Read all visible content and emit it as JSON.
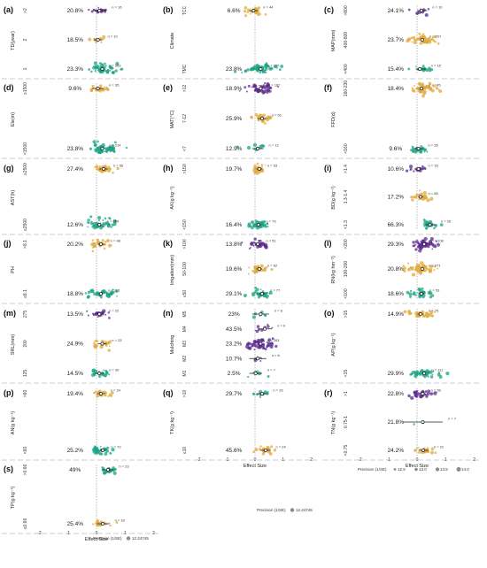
{
  "colors": {
    "purple": "#5b2a8e",
    "orange": "#e0a83a",
    "green": "#1ba383",
    "dash": "#8c8c8c",
    "ci": "#222222"
  },
  "x_axis": {
    "ticks": [
      -2,
      -1,
      0,
      1,
      2
    ],
    "label": "Effect Size",
    "xlim": [
      -2.2,
      2.2
    ]
  },
  "legend_precision": {
    "title": "Precision (1/SE)",
    "values": [
      "12.5",
      "13.0",
      "13.5",
      "14.0"
    ]
  },
  "legend_single": {
    "title": "Precision (1/SE)",
    "value": "12.24745"
  },
  "chart_data": [
    {
      "label": "(a)",
      "type": "scatter",
      "ylabel": "TD(year)",
      "groups": [
        {
          "cat": ">2",
          "pct": "20.8%",
          "n": "n = 16",
          "mean": 0.1,
          "ci": [
            -0.1,
            0.35
          ],
          "color": "purple",
          "count": 16
        },
        {
          "cat": "2",
          "pct": "18.5%",
          "n": "n = 10",
          "mean": 0.05,
          "ci": [
            -0.1,
            0.2
          ],
          "color": "orange",
          "count": 10
        },
        {
          "cat": "1",
          "pct": "23.3%",
          "n": "n = 263",
          "mean": 0.2,
          "ci": [
            0.15,
            0.25
          ],
          "color": "green",
          "count": 60
        }
      ]
    },
    {
      "label": "(b)",
      "type": "scatter",
      "ylabel": "Climate",
      "groups": [
        {
          "cat": "TCC",
          "pct": "6.6%",
          "n": "n = 44",
          "mean": -0.05,
          "ci": [
            -0.2,
            0.1
          ],
          "color": "orange",
          "count": 25
        },
        {
          "cat": "TMC",
          "pct": "23.8%",
          "n": "n = 250",
          "mean": 0.2,
          "ci": [
            0.15,
            0.25
          ],
          "color": "green",
          "count": 60
        }
      ]
    },
    {
      "label": "(c)",
      "type": "scatter",
      "ylabel": "MAP(mm)",
      "groups": [
        {
          "cat": ">800",
          "pct": "24.1%",
          "n": "n = 10",
          "mean": 0.15,
          "ci": [
            0.0,
            0.35
          ],
          "color": "purple",
          "count": 10
        },
        {
          "cat": "400-800",
          "pct": "23.7%",
          "n": "n = 207",
          "mean": 0.18,
          "ci": [
            0.12,
            0.24
          ],
          "color": "orange",
          "count": 55
        },
        {
          "cat": "<400",
          "pct": "15.4%",
          "n": "n = 15",
          "mean": 0.1,
          "ci": [
            -0.05,
            0.3
          ],
          "color": "green",
          "count": 15
        }
      ]
    },
    {
      "label": "(d)",
      "type": "scatter",
      "ylabel": "Ele(m)",
      "groups": [
        {
          "cat": "≥1500",
          "pct": "9.6%",
          "n": "n = 35",
          "mean": 0.05,
          "ci": [
            -0.15,
            0.25
          ],
          "color": "orange",
          "count": 25
        },
        {
          "cat": "<1500",
          "pct": "23.8%",
          "n": "n = 214",
          "mean": 0.2,
          "ci": [
            0.15,
            0.25
          ],
          "color": "green",
          "count": 60
        }
      ]
    },
    {
      "label": "(e)",
      "type": "scatter",
      "ylabel": "MAT(°C)",
      "groups": [
        {
          "cat": ">12",
          "pct": "18.9%",
          "n": "n = 167",
          "mean": 0.2,
          "ci": [
            0.12,
            0.28
          ],
          "color": "purple",
          "count": 50
        },
        {
          "cat": "7-12",
          "pct": "25.9%",
          "n": "n = 51",
          "mean": 0.25,
          "ci": [
            0.1,
            0.4
          ],
          "color": "orange",
          "count": 30
        },
        {
          "cat": "<7",
          "pct": "12.9%",
          "n": "n = 12",
          "mean": 0.1,
          "ci": [
            -0.1,
            0.3
          ],
          "color": "green",
          "count": 12
        }
      ]
    },
    {
      "label": "(f)",
      "type": "scatter",
      "ylabel": "FFD(d)",
      "groups": [
        {
          "cat": "160-230",
          "pct": "18.4%",
          "n": "n = 145",
          "mean": 0.15,
          "ci": [
            0.08,
            0.22
          ],
          "color": "orange",
          "count": 55
        },
        {
          "cat": "<160",
          "pct": "9.6%",
          "n": "n = 35",
          "mean": 0.05,
          "ci": [
            -0.1,
            0.2
          ],
          "color": "green",
          "count": 25
        }
      ]
    },
    {
      "label": "(g)",
      "type": "scatter",
      "ylabel": "AST(h)",
      "groups": [
        {
          "cat": "≥2500",
          "pct": "27.4%",
          "n": "n = 55",
          "mean": 0.25,
          "ci": [
            0.1,
            0.4
          ],
          "color": "orange",
          "count": 30
        },
        {
          "cat": "≤2500",
          "pct": "12.6%",
          "n": "n = 109",
          "mean": 0.1,
          "ci": [
            0.02,
            0.18
          ],
          "color": "green",
          "count": 45
        }
      ]
    },
    {
      "label": "(h)",
      "type": "scatter",
      "ylabel": "AK(g kg⁻¹)",
      "groups": [
        {
          "cat": ">150",
          "pct": "19.7%",
          "n": "n = 53",
          "mean": 0.15,
          "ci": [
            0.05,
            0.25
          ],
          "color": "orange",
          "count": 30
        },
        {
          "cat": "<150",
          "pct": "16.4%",
          "n": "n = 79",
          "mean": 0.12,
          "ci": [
            0.05,
            0.2
          ],
          "color": "green",
          "count": 40
        }
      ]
    },
    {
      "label": "(i)",
      "type": "scatter",
      "ylabel": "BD(g kg⁻¹)",
      "groups": [
        {
          "cat": ">1.4",
          "pct": "10.6%",
          "n": "n = 16",
          "mean": 0.05,
          "ci": [
            -0.1,
            0.2
          ],
          "color": "purple",
          "count": 16
        },
        {
          "cat": "1.3-1.4",
          "pct": "17.2%",
          "n": "n = 66",
          "mean": 0.12,
          "ci": [
            0.05,
            0.2
          ],
          "color": "orange",
          "count": 30
        },
        {
          "cat": "<1.3",
          "pct": "66.3%",
          "n": "n = 26",
          "mean": 0.45,
          "ci": [
            0.3,
            0.65
          ],
          "color": "green",
          "count": 26
        }
      ]
    },
    {
      "label": "(j)",
      "type": "scatter",
      "ylabel": "PH",
      "groups": [
        {
          "cat": ">8.1",
          "pct": "20.2%",
          "n": "n = 48",
          "mean": 0.15,
          "ci": [
            0.05,
            0.3
          ],
          "color": "orange",
          "count": 30
        },
        {
          "cat": "≤8.1",
          "pct": "18.8%",
          "n": "n = 115",
          "mean": 0.15,
          "ci": [
            0.08,
            0.22
          ],
          "color": "green",
          "count": 45
        }
      ]
    },
    {
      "label": "(k)",
      "type": "scatter",
      "ylabel": "Irrigation(mm)",
      "groups": [
        {
          "cat": ">100",
          "pct": "13.8%",
          "n": "n = 51",
          "mean": 0.1,
          "ci": [
            0.0,
            0.2
          ],
          "color": "purple",
          "count": 30
        },
        {
          "cat": "50-100",
          "pct": "19.6%",
          "n": "n = 62",
          "mean": 0.15,
          "ci": [
            0.05,
            0.25
          ],
          "color": "orange",
          "count": 35
        },
        {
          "cat": "≤50",
          "pct": "29.1%",
          "n": "n = 77",
          "mean": 0.25,
          "ci": [
            0.15,
            0.35
          ],
          "color": "green",
          "count": 40
        }
      ]
    },
    {
      "label": "(l)",
      "type": "scatter",
      "ylabel": "RN(kg hm⁻²)",
      "groups": [
        {
          "cat": ">200",
          "pct": "29.3%",
          "n": "n = 108",
          "mean": 0.25,
          "ci": [
            0.18,
            0.32
          ],
          "color": "purple",
          "count": 55
        },
        {
          "cat": "100-200",
          "pct": "20.8%",
          "n": "n = 271",
          "mean": 0.18,
          "ci": [
            0.14,
            0.22
          ],
          "color": "orange",
          "count": 60
        },
        {
          "cat": "<100",
          "pct": "18.6%",
          "n": "n = 53",
          "mean": 0.15,
          "ci": [
            0.05,
            0.25
          ],
          "color": "green",
          "count": 35
        }
      ]
    },
    {
      "label": "(m)",
      "type": "scatter",
      "ylabel": "SRL(mm)",
      "groups": [
        {
          "cat": "275",
          "pct": "13.5%",
          "n": "n = 22",
          "mean": 0.1,
          "ci": [
            -0.05,
            0.25
          ],
          "color": "purple",
          "count": 22
        },
        {
          "cat": "200",
          "pct": "24.9%",
          "n": "n = 23",
          "mean": 0.2,
          "ci": [
            0.05,
            0.35
          ],
          "color": "orange",
          "count": 23
        },
        {
          "cat": "125",
          "pct": "14.5%",
          "n": "n = 30",
          "mean": 0.1,
          "ci": [
            -0.05,
            0.25
          ],
          "color": "green",
          "count": 25
        }
      ]
    },
    {
      "label": "(n)",
      "type": "scatter",
      "ylabel": "Mulching",
      "groups": [
        {
          "cat": "M5",
          "pct": "23%",
          "n": "n = 6",
          "mean": 0.2,
          "ci": [
            -0.1,
            0.5
          ],
          "color": "green",
          "count": 6
        },
        {
          "cat": "M4",
          "pct": "43.5%",
          "n": "n = 9",
          "mean": 0.35,
          "ci": [
            0.1,
            0.6
          ],
          "color": "purple",
          "count": 9
        },
        {
          "cat": "M3",
          "pct": "23.2%",
          "n": "n = 263",
          "mean": 0.2,
          "ci": [
            0.15,
            0.25
          ],
          "color": "purple",
          "count": 55
        },
        {
          "cat": "M2",
          "pct": "10.7%",
          "n": "n = 6",
          "mean": 0.1,
          "ci": [
            -0.2,
            0.4
          ],
          "color": "purple",
          "count": 6
        },
        {
          "cat": "M1",
          "pct": "2.5%",
          "n": "n = 7",
          "mean": 0.02,
          "ci": [
            -0.2,
            0.25
          ],
          "color": "green",
          "count": 7
        }
      ]
    },
    {
      "label": "(o)",
      "type": "scatter",
      "ylabel": "AP(g kg⁻¹)",
      "groups": [
        {
          "cat": ">15",
          "pct": "14.9%",
          "n": "n = 75",
          "mean": 0.12,
          "ci": [
            0.02,
            0.22
          ],
          "color": "orange",
          "count": 35
        },
        {
          "cat": "<15",
          "pct": "29.9%",
          "n": "n = 111",
          "mean": 0.25,
          "ci": [
            0.18,
            0.32
          ],
          "color": "green",
          "count": 45
        }
      ]
    },
    {
      "label": "(p)",
      "type": "scatter",
      "ylabel": "AN(g kg⁻¹)",
      "groups": [
        {
          "cat": ">60",
          "pct": "19.4%",
          "n": "n = 24",
          "mean": 0.15,
          "ci": [
            0.0,
            0.3
          ],
          "color": "orange",
          "count": 24
        },
        {
          "cat": "<60",
          "pct": "25.2%",
          "n": "n = 72",
          "mean": 0.22,
          "ci": [
            0.12,
            0.32
          ],
          "color": "green",
          "count": 40
        }
      ]
    },
    {
      "label": "(q)",
      "type": "scatter",
      "ylabel": "TK(g kg⁻¹)",
      "groups": [
        {
          "cat": ">10",
          "pct": "29.7%",
          "n": "n = 15",
          "mean": 0.25,
          "ci": [
            0.05,
            0.45
          ],
          "color": "green",
          "count": 15
        },
        {
          "cat": "≤10",
          "pct": "45.6%",
          "n": "n = 24",
          "mean": 0.38,
          "ci": [
            0.2,
            0.55
          ],
          "color": "orange",
          "count": 24
        }
      ]
    },
    {
      "label": "(r)",
      "type": "scatter",
      "ylabel": "TN(g kg⁻¹)",
      "groups": [
        {
          "cat": ">1",
          "pct": "22.8%",
          "n": "n = 59",
          "mean": 0.2,
          "ci": [
            0.1,
            0.3
          ],
          "color": "purple",
          "count": 35
        },
        {
          "cat": "0.75-1",
          "pct": "21.8%",
          "n": "n = 7",
          "mean": 0.2,
          "ci": [
            -0.5,
            0.9
          ],
          "color": "green",
          "count": 2
        },
        {
          "cat": "<0.75",
          "pct": "24.2%",
          "n": "n = 21",
          "mean": 0.22,
          "ci": [
            0.05,
            0.4
          ],
          "color": "orange",
          "count": 21
        }
      ]
    },
    {
      "label": "(s)",
      "type": "scatter",
      "ylabel": "TP(g kg⁻¹)",
      "groups": [
        {
          "cat": ">0.66",
          "pct": "49%",
          "n": "n = 23",
          "mean": 0.4,
          "ci": [
            0.2,
            0.6
          ],
          "color": "green",
          "count": 23
        },
        {
          "cat": "≤0.66",
          "pct": "25.4%",
          "n": "n = 18",
          "mean": 0.22,
          "ci": [
            0.02,
            0.45
          ],
          "color": "orange",
          "count": 18
        }
      ]
    }
  ]
}
